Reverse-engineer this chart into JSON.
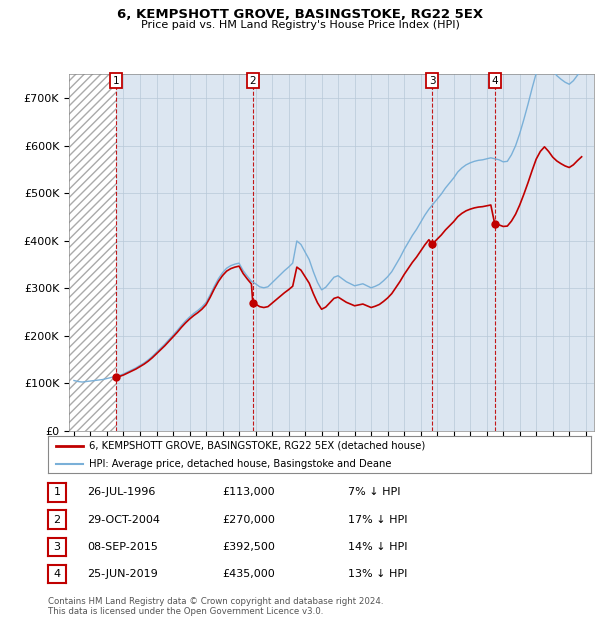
{
  "title_line1": "6, KEMPSHOTT GROVE, BASINGSTOKE, RG22 5EX",
  "title_line2": "Price paid vs. HM Land Registry's House Price Index (HPI)",
  "ylim": [
    0,
    750000
  ],
  "yticks": [
    0,
    100000,
    200000,
    300000,
    400000,
    500000,
    600000,
    700000
  ],
  "ytick_labels": [
    "£0",
    "£100K",
    "£200K",
    "£300K",
    "£400K",
    "£500K",
    "£600K",
    "£700K"
  ],
  "xlim_start": 1993.7,
  "xlim_end": 2025.5,
  "hatch_end_year": 1996.57,
  "sale_dates": [
    1996.57,
    2004.83,
    2015.69,
    2019.49
  ],
  "sale_prices": [
    113000,
    270000,
    392500,
    435000
  ],
  "sale_labels": [
    "1",
    "2",
    "3",
    "4"
  ],
  "sale_date_strs": [
    "26-JUL-1996",
    "29-OCT-2004",
    "08-SEP-2015",
    "25-JUN-2019"
  ],
  "sale_price_strs": [
    "£113,000",
    "£270,000",
    "£392,500",
    "£435,000"
  ],
  "sale_hpi_strs": [
    "7% ↓ HPI",
    "17% ↓ HPI",
    "14% ↓ HPI",
    "13% ↓ HPI"
  ],
  "hpi_color": "#7ab0d8",
  "sale_color": "#c00000",
  "dot_color": "#c00000",
  "bg_color": "#dce6f1",
  "grid_color": "#b8c8d8",
  "legend_line1": "6, KEMPSHOTT GROVE, BASINGSTOKE, RG22 5EX (detached house)",
  "legend_line2": "HPI: Average price, detached house, Basingstoke and Deane",
  "footer1": "Contains HM Land Registry data © Crown copyright and database right 2024.",
  "footer2": "This data is licensed under the Open Government Licence v3.0.",
  "hpi_years": [
    1994.0,
    1994.25,
    1994.5,
    1994.75,
    1995.0,
    1995.25,
    1995.5,
    1995.75,
    1996.0,
    1996.25,
    1996.5,
    1996.75,
    1997.0,
    1997.25,
    1997.5,
    1997.75,
    1998.0,
    1998.25,
    1998.5,
    1998.75,
    1999.0,
    1999.25,
    1999.5,
    1999.75,
    2000.0,
    2000.25,
    2000.5,
    2000.75,
    2001.0,
    2001.25,
    2001.5,
    2001.75,
    2002.0,
    2002.25,
    2002.5,
    2002.75,
    2003.0,
    2003.25,
    2003.5,
    2003.75,
    2004.0,
    2004.25,
    2004.5,
    2004.75,
    2005.0,
    2005.25,
    2005.5,
    2005.75,
    2006.0,
    2006.25,
    2006.5,
    2006.75,
    2007.0,
    2007.25,
    2007.5,
    2007.75,
    2008.0,
    2008.25,
    2008.5,
    2008.75,
    2009.0,
    2009.25,
    2009.5,
    2009.75,
    2010.0,
    2010.25,
    2010.5,
    2010.75,
    2011.0,
    2011.25,
    2011.5,
    2011.75,
    2012.0,
    2012.25,
    2012.5,
    2012.75,
    2013.0,
    2013.25,
    2013.5,
    2013.75,
    2014.0,
    2014.25,
    2014.5,
    2014.75,
    2015.0,
    2015.25,
    2015.5,
    2015.75,
    2016.0,
    2016.25,
    2016.5,
    2016.75,
    2017.0,
    2017.25,
    2017.5,
    2017.75,
    2018.0,
    2018.25,
    2018.5,
    2018.75,
    2019.0,
    2019.25,
    2019.5,
    2019.75,
    2020.0,
    2020.25,
    2020.5,
    2020.75,
    2021.0,
    2021.25,
    2021.5,
    2021.75,
    2022.0,
    2022.25,
    2022.5,
    2022.75,
    2023.0,
    2023.25,
    2023.5,
    2023.75,
    2024.0,
    2024.25,
    2024.5,
    2024.75
  ],
  "hpi_index": [
    100,
    98,
    97,
    98,
    99,
    100,
    101,
    102,
    104,
    106,
    108,
    110,
    113,
    117,
    121,
    125,
    130,
    135,
    141,
    148,
    156,
    164,
    172,
    181,
    190,
    199,
    209,
    218,
    226,
    233,
    239,
    246,
    255,
    270,
    287,
    302,
    314,
    323,
    328,
    331,
    333,
    318,
    307,
    297,
    292,
    286,
    284,
    286,
    294,
    302,
    310,
    318,
    325,
    333,
    377,
    370,
    355,
    340,
    316,
    295,
    280,
    285,
    295,
    305,
    308,
    302,
    296,
    292,
    288,
    290,
    292,
    288,
    284,
    287,
    291,
    298,
    306,
    316,
    330,
    344,
    360,
    374,
    388,
    400,
    414,
    428,
    440,
    450,
    460,
    470,
    482,
    492,
    502,
    514,
    522,
    528,
    532,
    535,
    537,
    538,
    540,
    542,
    540,
    538,
    534,
    535,
    548,
    566,
    590,
    618,
    648,
    680,
    710,
    730,
    742,
    730,
    715,
    705,
    698,
    692,
    688,
    695,
    706,
    716
  ]
}
